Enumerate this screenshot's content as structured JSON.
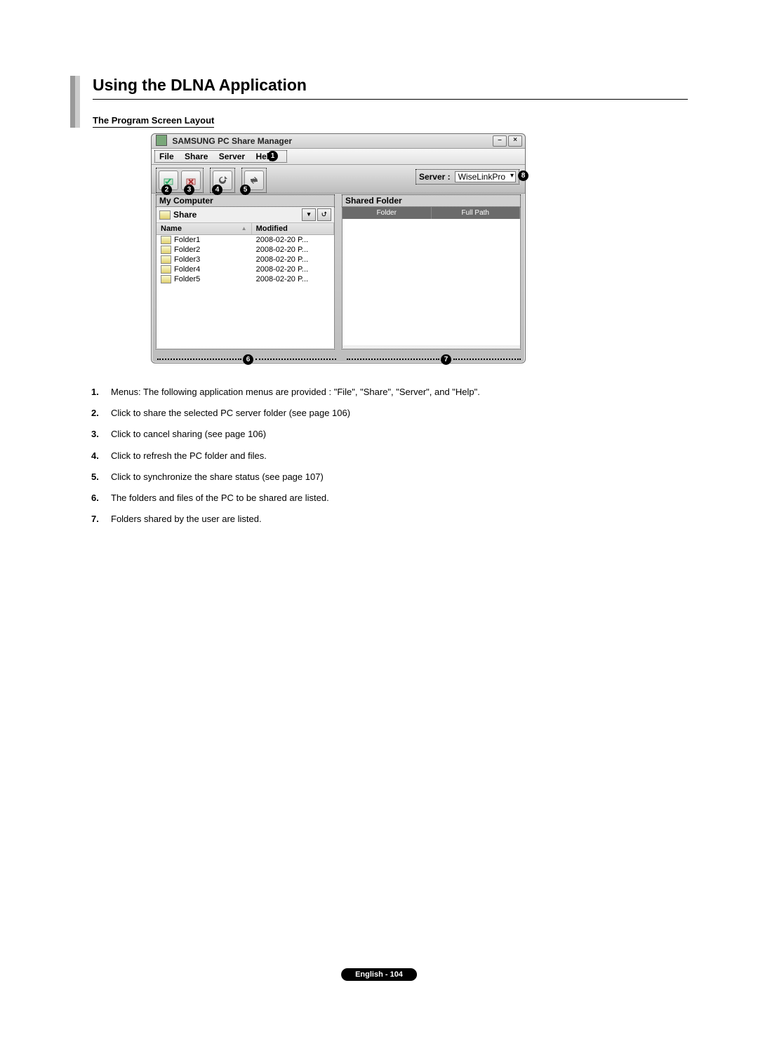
{
  "title": "Using the DLNA Application",
  "subtitle": "The Program Screen Layout",
  "window": {
    "app_title": "SAMSUNG PC Share Manager",
    "menus": [
      "File",
      "Share",
      "Server",
      "Help"
    ],
    "server_label": "Server :",
    "server_value": "WiseLinkPro",
    "left_panel_title": "My Computer",
    "share_label": "Share",
    "columns": {
      "name": "Name",
      "modified": "Modified"
    },
    "folders": [
      {
        "name": "Folder1",
        "modified": "2008-02-20 P..."
      },
      {
        "name": "Folder2",
        "modified": "2008-02-20 P..."
      },
      {
        "name": "Folder3",
        "modified": "2008-02-20 P..."
      },
      {
        "name": "Folder4",
        "modified": "2008-02-20 P..."
      },
      {
        "name": "Folder5",
        "modified": "2008-02-20 P..."
      }
    ],
    "right_panel_title": "Shared Folder",
    "shared_columns": {
      "folder": "Folder",
      "full_path": "Full Path"
    }
  },
  "callouts": [
    "1",
    "2",
    "3",
    "4",
    "5",
    "6",
    "7",
    "8"
  ],
  "descriptions": [
    {
      "n": "1.",
      "t": "Menus: The following application menus are provided : \"File\", \"Share\", \"Server\", and \"Help\"."
    },
    {
      "n": "2.",
      "t": "Click to share the selected PC server folder (see page 106)"
    },
    {
      "n": "3.",
      "t": "Click to cancel sharing (see page 106)"
    },
    {
      "n": "4.",
      "t": "Click to refresh the PC folder and files."
    },
    {
      "n": "5.",
      "t": "Click to synchronize the share status (see page 107)"
    },
    {
      "n": "6.",
      "t": "The folders and files of the PC to be shared are listed."
    },
    {
      "n": "7.",
      "t": "Folders shared by the user are listed."
    }
  ],
  "footer": "English - 104",
  "style": {
    "page_bg": "#ffffff",
    "accent_bar_outer": "#999999",
    "accent_bar_inner": "#cccccc",
    "headline_fontsize": 23,
    "subhead_fontsize": 13,
    "body_fontsize": 13,
    "callout_bg": "#000000",
    "callout_fg": "#ffffff",
    "footer_bg": "#000000",
    "footer_fg": "#ffffff",
    "window_border": "#6f6f6f",
    "window_grad_top": "#e8e8e8",
    "window_grad_bot": "#bcbcbc",
    "shared_header_bg": "#6b6b6b",
    "folder_glyph_top": "#fafad2",
    "folder_glyph_bot": "#e0d070"
  }
}
